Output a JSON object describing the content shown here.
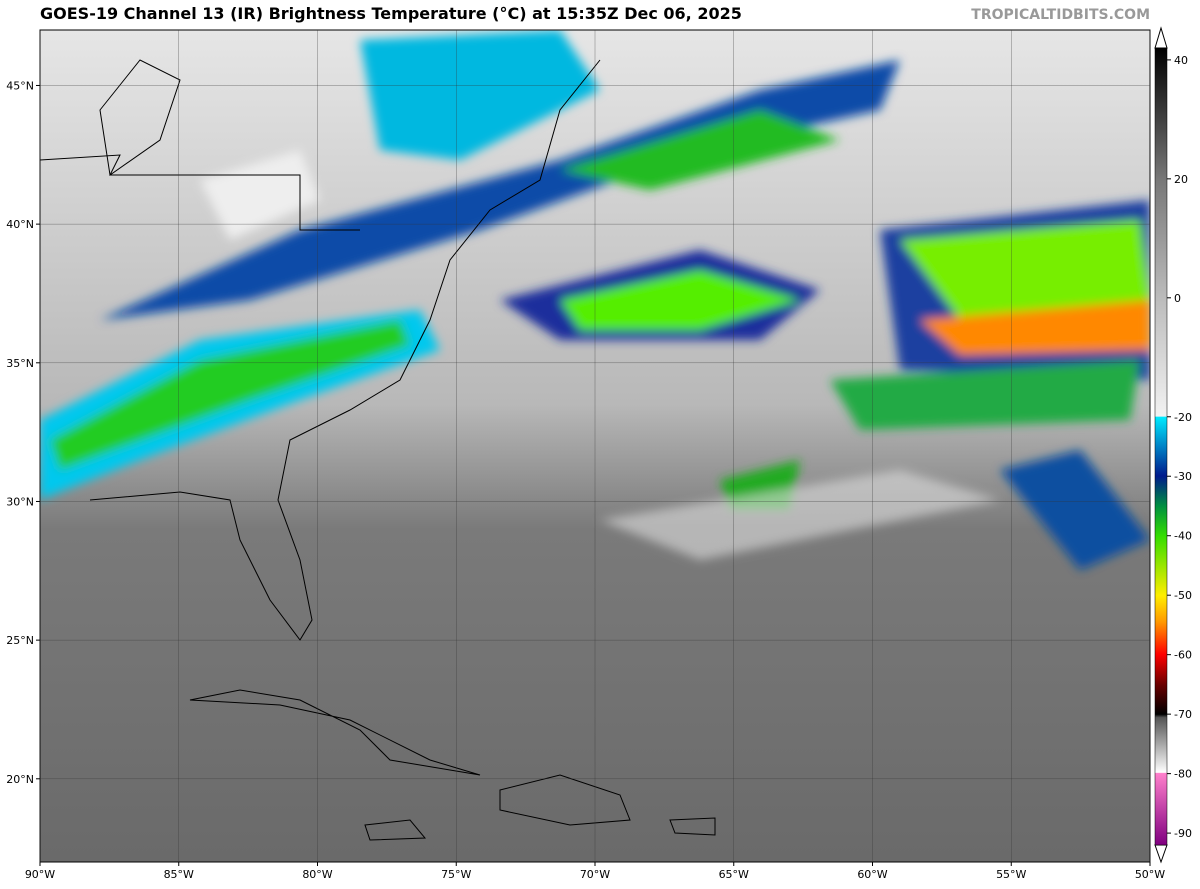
{
  "map": {
    "title": "GOES-19 Channel 13 (IR) Brightness Temperature (°C) at 15:35Z Dec 06, 2025",
    "source": "TROPICALTIDBITS.COM",
    "lon_range": [
      -90,
      -50
    ],
    "lat_range": [
      17,
      47
    ],
    "lon_ticks": [
      {
        "value": -90,
        "label": "90°W"
      },
      {
        "value": -85,
        "label": "85°W"
      },
      {
        "value": -80,
        "label": "80°W"
      },
      {
        "value": -75,
        "label": "75°W"
      },
      {
        "value": -70,
        "label": "70°W"
      },
      {
        "value": -65,
        "label": "65°W"
      },
      {
        "value": -60,
        "label": "60°W"
      },
      {
        "value": -55,
        "label": "55°W"
      },
      {
        "value": -50,
        "label": "50°W"
      }
    ],
    "lat_ticks": [
      {
        "value": 20,
        "label": "20°N"
      },
      {
        "value": 25,
        "label": "25°N"
      },
      {
        "value": 30,
        "label": "30°N"
      },
      {
        "value": 35,
        "label": "35°N"
      },
      {
        "value": 40,
        "label": "40°N"
      },
      {
        "value": 45,
        "label": "45°N"
      }
    ]
  },
  "colorbar": {
    "range": [
      -92,
      42
    ],
    "ticks": [
      40,
      20,
      0,
      -20,
      -30,
      -40,
      -50,
      -60,
      -70,
      -80,
      -90
    ]
  }
}
